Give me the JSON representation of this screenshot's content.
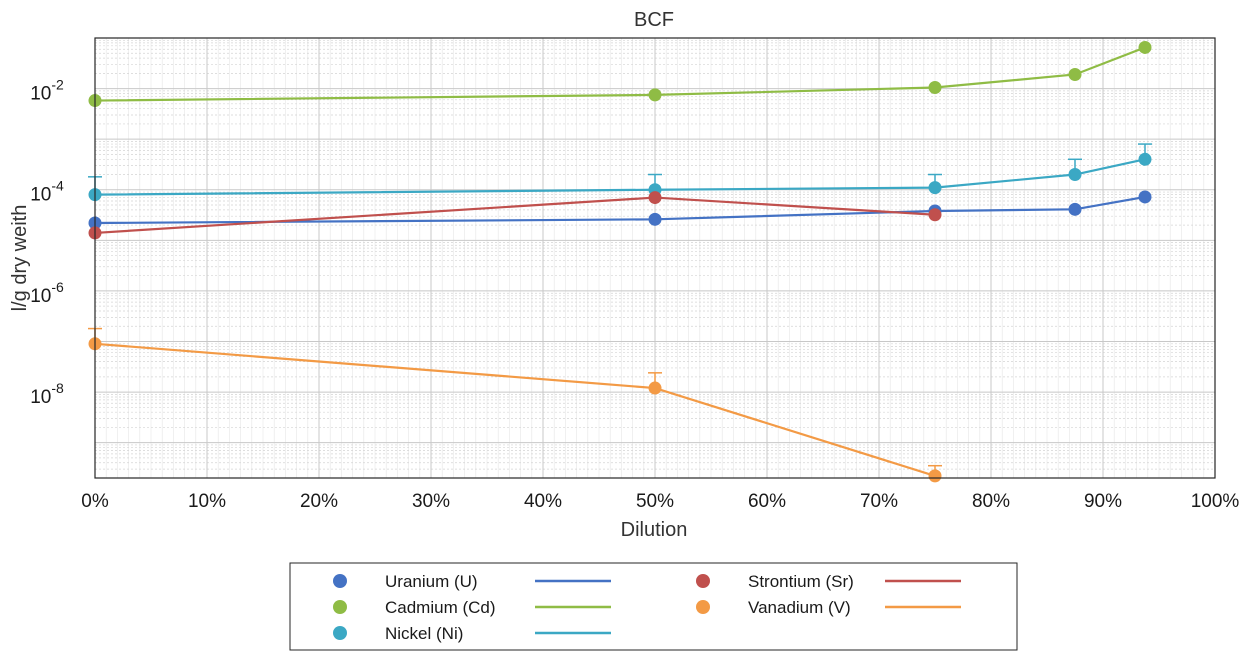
{
  "chart_data": {
    "type": "line",
    "title": "BCF",
    "xlabel": "Dilution",
    "ylabel": "l/g dry weith",
    "x_scale": "linear",
    "y_scale": "log",
    "xlim": [
      0,
      1
    ],
    "ylim": [
      2e-10,
      0.1
    ],
    "x_ticks": [
      {
        "value": 0.0,
        "label": "0%"
      },
      {
        "value": 0.1,
        "label": "10%"
      },
      {
        "value": 0.2,
        "label": "20%"
      },
      {
        "value": 0.3,
        "label": "30%"
      },
      {
        "value": 0.4,
        "label": "40%"
      },
      {
        "value": 0.5,
        "label": "50%"
      },
      {
        "value": 0.6,
        "label": "60%"
      },
      {
        "value": 0.7,
        "label": "70%"
      },
      {
        "value": 0.8,
        "label": "80%"
      },
      {
        "value": 0.9,
        "label": "90%"
      },
      {
        "value": 1.0,
        "label": "100%"
      }
    ],
    "y_ticks": [
      {
        "value": 1e-08,
        "base": "10",
        "exp": "-8"
      },
      {
        "value": 1e-06,
        "base": "10",
        "exp": "-6"
      },
      {
        "value": 0.0001,
        "base": "10",
        "exp": "-4"
      },
      {
        "value": 0.01,
        "base": "10",
        "exp": "-2"
      }
    ],
    "grid": true,
    "minor_grid": true,
    "legend_position": "bottom-center",
    "series": [
      {
        "name": "Uranium (U)",
        "color": "#4472c4",
        "x": [
          0.0,
          0.5,
          0.75,
          0.875,
          0.9375
        ],
        "y": [
          2.2e-05,
          2.6e-05,
          3.8e-05,
          4.1e-05,
          7.2e-05
        ],
        "err_upper": [
          null,
          null,
          null,
          null,
          null
        ]
      },
      {
        "name": "Cadmium (Cd)",
        "color": "#8fbc45",
        "x": [
          0.0,
          0.5,
          0.75,
          0.875,
          0.9375
        ],
        "y": [
          0.0058,
          0.0075,
          0.0105,
          0.019,
          0.065
        ],
        "err_upper": [
          null,
          null,
          null,
          null,
          null
        ]
      },
      {
        "name": "Nickel (Ni)",
        "color": "#3ba8c4",
        "x": [
          0.0,
          0.5,
          0.75,
          0.875,
          0.9375
        ],
        "y": [
          8e-05,
          0.0001,
          0.00011,
          0.0002,
          0.0004
        ],
        "err_upper": [
          0.00018,
          0.0002,
          0.0002,
          0.0004,
          0.0008
        ]
      },
      {
        "name": "Strontium (Sr)",
        "color": "#c0504d",
        "x": [
          0.0,
          0.5,
          0.75
        ],
        "y": [
          1.4e-05,
          7e-05,
          3.2e-05
        ],
        "err_upper": [
          null,
          null,
          null
        ]
      },
      {
        "name": "Vanadium (V)",
        "color": "#f39a45",
        "x": [
          0.0,
          0.5,
          0.75
        ],
        "y": [
          9e-08,
          1.2e-08,
          2.2e-10
        ],
        "err_upper": [
          1.8e-07,
          2.4e-08,
          3.5e-10
        ]
      }
    ]
  }
}
